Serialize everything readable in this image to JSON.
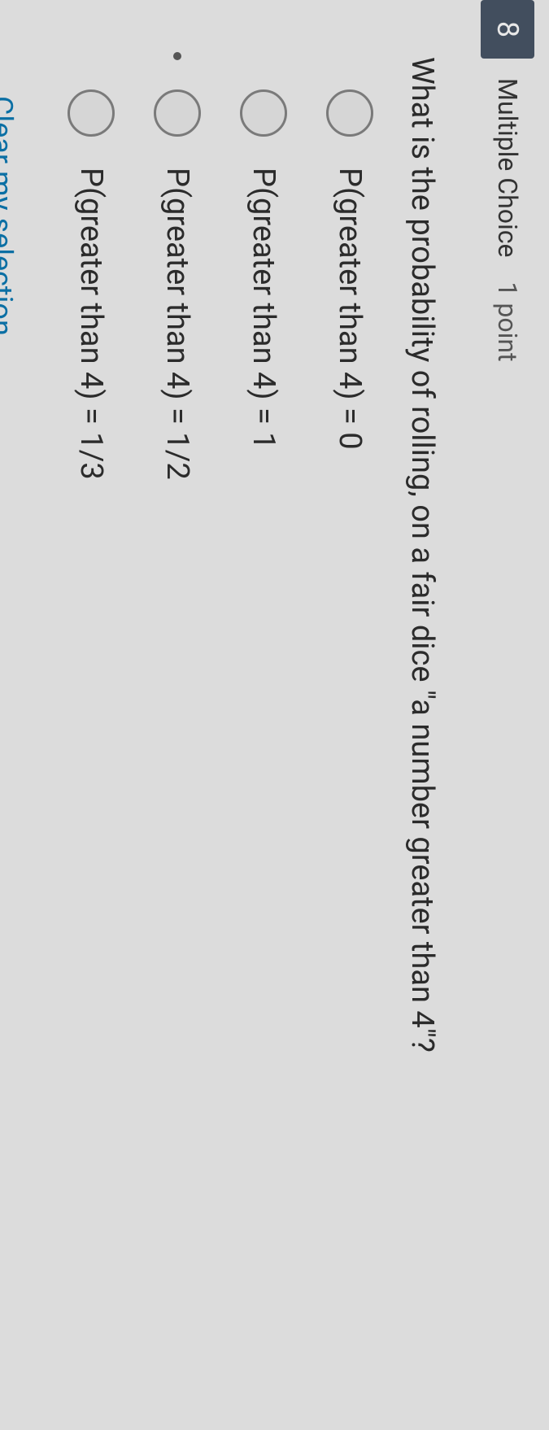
{
  "colors": {
    "page_bg": "#dcdcdc",
    "qnum_bg": "#424e5e",
    "qnum_fg": "#e8e8e8",
    "text_primary": "#2b2b2b",
    "text_secondary": "#555555",
    "radio_border": "#7a7a7a",
    "radio_bg": "#d6d6d6",
    "link": "#0b6fa4"
  },
  "typography": {
    "family": "system-ui",
    "qnum_size": 36,
    "header_size": 32,
    "question_size": 38,
    "option_size": 38,
    "clear_size": 36
  },
  "quiz": {
    "number": "8",
    "type_label": "Multiple Choice",
    "points_label": "1 point",
    "question": "What is the probability of rolling, on a fair dice \"a number greater than 4\"?",
    "options": [
      {
        "label": "P(greater than 4) = 0",
        "selected": false
      },
      {
        "label": "P(greater than 4) = 1",
        "selected": false
      },
      {
        "label": "P(greater than 4) = 1/2",
        "selected": false
      },
      {
        "label": "P(greater than 4) = 1/3",
        "selected": false
      }
    ],
    "clear_label": "Clear my selection"
  }
}
